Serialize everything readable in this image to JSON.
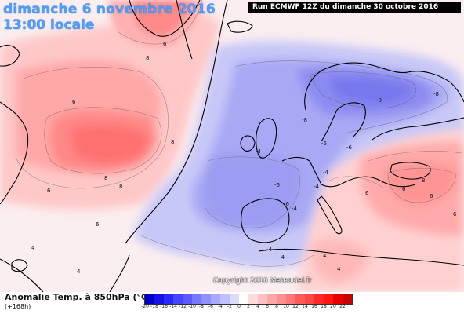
{
  "header": {
    "date_title": "dimanche 6 novembre 2016",
    "time_title": "13:00 locale",
    "run_label": "Run ECMWF 12Z du dimanche 30 octobre 2016"
  },
  "footer": {
    "legend_title": "Anomalie Temp. à 850hPa (°C)",
    "forecast_hour": "(+168h)",
    "copyright": "Copyright 2016 Meteociel.fr"
  },
  "legend": {
    "values": [
      "-20",
      "-18",
      "-16",
      "-14",
      "-12",
      "-10",
      "-8",
      "-6",
      "-4",
      "-2",
      "0",
      "2",
      "4",
      "6",
      "8",
      "10",
      "12",
      "14",
      "16",
      "18",
      "20",
      "22"
    ],
    "colors": [
      "#0000c8",
      "#1414e6",
      "#2828ff",
      "#4646ff",
      "#5a5aff",
      "#7878ff",
      "#9090ff",
      "#a8a8ff",
      "#c0c0ff",
      "#dcdcff",
      "#ffffff",
      "#ffdcdc",
      "#ffc0c0",
      "#ffa8a8",
      "#ff9090",
      "#ff7878",
      "#ff5a5a",
      "#ff4646",
      "#ff2828",
      "#ff1414",
      "#e60000",
      "#c80000"
    ]
  },
  "map": {
    "contour_labels": [
      "8",
      "6",
      "6",
      "8",
      "8",
      "8",
      "6",
      "6",
      "4",
      "4",
      "-8",
      "-8",
      "-8",
      "-6",
      "-6",
      "-6",
      "-6",
      "-4",
      "-4",
      "-4",
      "-4",
      "-4",
      "8",
      "6",
      "6",
      "6",
      "4",
      "4",
      "6",
      "-4"
    ]
  }
}
